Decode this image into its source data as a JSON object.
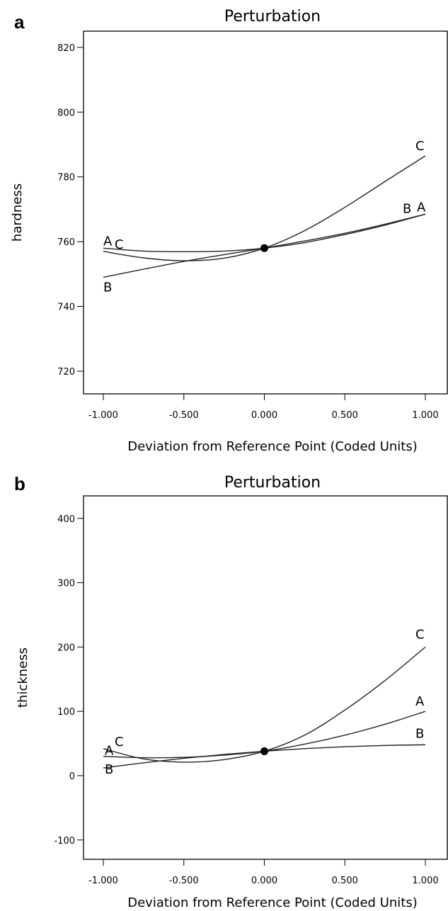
{
  "chart_data": [
    {
      "type": "line",
      "panel_label": "a",
      "title": "Perturbation",
      "xlabel": "Deviation from Reference Point (Coded Units)",
      "ylabel": "hardness",
      "xlim": [
        -1.0,
        1.0
      ],
      "ylim": [
        713,
        825
      ],
      "x_ticks": [
        "-1.000",
        "-0.500",
        "0.000",
        "0.500",
        "1.000"
      ],
      "y_ticks": [
        "720",
        "740",
        "760",
        "780",
        "800",
        "820"
      ],
      "grid": false,
      "reference_point": {
        "x": 0.0,
        "y": 758
      },
      "series": [
        {
          "name": "A",
          "x": [
            -1.0,
            -0.75,
            -0.5,
            -0.25,
            0.0,
            0.25,
            0.5,
            0.75,
            1.0
          ],
          "values": [
            758,
            757.1,
            756.9,
            757.1,
            758,
            759.7,
            762.2,
            765.1,
            768.5
          ]
        },
        {
          "name": "B",
          "x": [
            -1.0,
            -0.75,
            -0.5,
            -0.25,
            0.0,
            0.25,
            0.5,
            0.75,
            1.0
          ],
          "values": [
            749,
            751.5,
            753.9,
            756,
            758,
            760.2,
            762.6,
            765.4,
            768.5
          ]
        },
        {
          "name": "C",
          "x": [
            -1.0,
            -0.75,
            -0.5,
            -0.25,
            0.0,
            0.25,
            0.5,
            0.75,
            1.0
          ],
          "values": [
            757,
            755,
            754.1,
            754.9,
            758,
            763.4,
            770.6,
            778.6,
            786.5
          ]
        }
      ]
    },
    {
      "type": "line",
      "panel_label": "b",
      "title": "Perturbation",
      "xlabel": "Deviation from Reference Point (Coded Units)",
      "ylabel": "thickness",
      "xlim": [
        -1.0,
        1.0
      ],
      "ylim": [
        -130,
        435
      ],
      "x_ticks": [
        "-1.000",
        "-0.500",
        "0.000",
        "0.500",
        "1.000"
      ],
      "y_ticks": [
        "-100",
        "0",
        "100",
        "200",
        "300",
        "400"
      ],
      "grid": false,
      "reference_point": {
        "x": 0.0,
        "y": 38
      },
      "series": [
        {
          "name": "A",
          "x": [
            -1.0,
            -0.75,
            -0.5,
            -0.25,
            0.0,
            0.25,
            0.5,
            0.75,
            1.0
          ],
          "values": [
            30,
            28,
            28.5,
            32,
            38,
            49,
            63,
            80,
            100
          ]
        },
        {
          "name": "B",
          "x": [
            -1.0,
            -0.75,
            -0.5,
            -0.25,
            0.0,
            0.25,
            0.5,
            0.75,
            1.0
          ],
          "values": [
            12,
            20,
            27,
            33,
            38,
            42,
            45,
            47,
            48
          ]
        },
        {
          "name": "C",
          "x": [
            -1.0,
            -0.75,
            -0.5,
            -0.25,
            0.0,
            0.25,
            0.5,
            0.75,
            1.0
          ],
          "values": [
            42,
            26,
            21,
            25,
            38,
            63,
            102,
            148,
            200
          ]
        }
      ]
    }
  ]
}
